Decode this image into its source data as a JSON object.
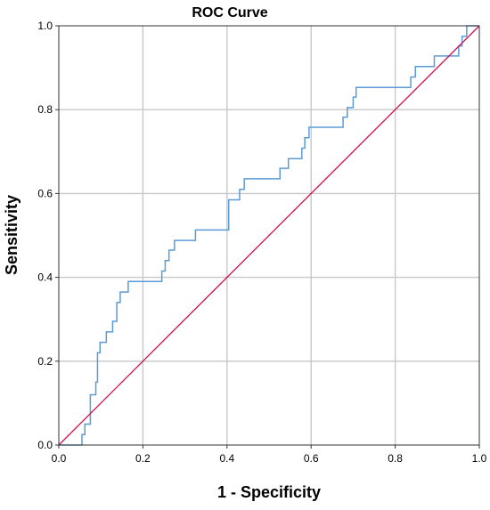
{
  "chart_data": {
    "type": "line",
    "title": "ROC Curve",
    "xlabel": "1 - Specificity",
    "ylabel": "Sensitivity",
    "xlim": [
      0.0,
      1.0
    ],
    "ylim": [
      0.0,
      1.0
    ],
    "grid": true,
    "x_ticks": [
      "0.0",
      "0.2",
      "0.4",
      "0.6",
      "0.8",
      "1.0"
    ],
    "y_ticks": [
      "0.0",
      "0.2",
      "0.4",
      "0.6",
      "0.8",
      "1.0"
    ],
    "series": [
      {
        "color": "#5b9bd5",
        "step": true,
        "points": [
          [
            0.0,
            0.0
          ],
          [
            0.055,
            0.0
          ],
          [
            0.055,
            0.025
          ],
          [
            0.062,
            0.025
          ],
          [
            0.062,
            0.05
          ],
          [
            0.075,
            0.05
          ],
          [
            0.075,
            0.12
          ],
          [
            0.088,
            0.12
          ],
          [
            0.088,
            0.15
          ],
          [
            0.092,
            0.15
          ],
          [
            0.092,
            0.22
          ],
          [
            0.098,
            0.22
          ],
          [
            0.098,
            0.245
          ],
          [
            0.113,
            0.245
          ],
          [
            0.113,
            0.27
          ],
          [
            0.128,
            0.27
          ],
          [
            0.128,
            0.295
          ],
          [
            0.138,
            0.295
          ],
          [
            0.138,
            0.34
          ],
          [
            0.146,
            0.34
          ],
          [
            0.146,
            0.365
          ],
          [
            0.165,
            0.365
          ],
          [
            0.165,
            0.39
          ],
          [
            0.245,
            0.39
          ],
          [
            0.245,
            0.415
          ],
          [
            0.253,
            0.415
          ],
          [
            0.253,
            0.44
          ],
          [
            0.262,
            0.44
          ],
          [
            0.262,
            0.465
          ],
          [
            0.275,
            0.465
          ],
          [
            0.275,
            0.488
          ],
          [
            0.325,
            0.488
          ],
          [
            0.325,
            0.513
          ],
          [
            0.404,
            0.513
          ],
          [
            0.404,
            0.585
          ],
          [
            0.43,
            0.585
          ],
          [
            0.43,
            0.61
          ],
          [
            0.441,
            0.61
          ],
          [
            0.441,
            0.635
          ],
          [
            0.526,
            0.635
          ],
          [
            0.526,
            0.66
          ],
          [
            0.546,
            0.66
          ],
          [
            0.546,
            0.683
          ],
          [
            0.578,
            0.683
          ],
          [
            0.578,
            0.708
          ],
          [
            0.585,
            0.708
          ],
          [
            0.585,
            0.733
          ],
          [
            0.595,
            0.733
          ],
          [
            0.595,
            0.758
          ],
          [
            0.676,
            0.758
          ],
          [
            0.676,
            0.782
          ],
          [
            0.686,
            0.782
          ],
          [
            0.686,
            0.805
          ],
          [
            0.7,
            0.805
          ],
          [
            0.7,
            0.83
          ],
          [
            0.707,
            0.83
          ],
          [
            0.707,
            0.853
          ],
          [
            0.837,
            0.853
          ],
          [
            0.837,
            0.878
          ],
          [
            0.848,
            0.878
          ],
          [
            0.848,
            0.903
          ],
          [
            0.893,
            0.903
          ],
          [
            0.893,
            0.928
          ],
          [
            0.951,
            0.928
          ],
          [
            0.951,
            0.952
          ],
          [
            0.959,
            0.952
          ],
          [
            0.959,
            0.975
          ],
          [
            0.97,
            0.975
          ],
          [
            0.97,
            1.0
          ],
          [
            1.0,
            1.0
          ]
        ]
      },
      {
        "color": "#d0104c",
        "step": false,
        "points": [
          [
            0.0,
            0.0
          ],
          [
            1.0,
            1.0
          ]
        ]
      }
    ]
  }
}
